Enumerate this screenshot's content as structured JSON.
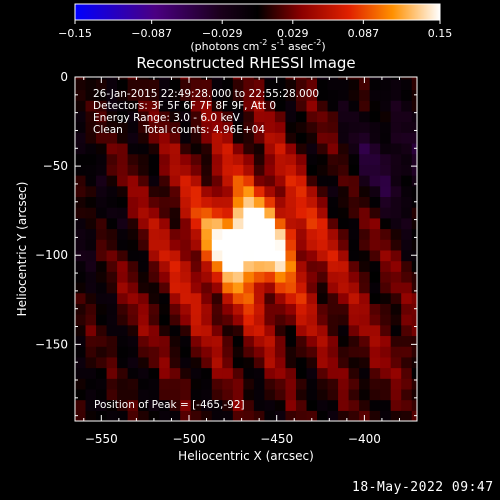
{
  "chart_data": {
    "type": "heatmap",
    "title": "Reconstructed RHESSI Image",
    "xlabel": "Heliocentric X (arcsec)",
    "ylabel": "Heliocentric Y (arcsec)",
    "xlim": [
      -565,
      -370
    ],
    "ylim": [
      -193,
      0
    ],
    "xticks": [
      -550,
      -500,
      -450,
      -400
    ],
    "yticks": [
      0,
      -50,
      -100,
      -150
    ],
    "colorbar": {
      "ticks": [
        -0.15,
        -0.087,
        -0.029,
        0.029,
        0.087,
        0.15
      ],
      "unit_text": "(photons cm",
      "unit_exp1": "-2",
      "unit_mid": " s",
      "unit_exp2": "-1",
      "unit_mid2": " asec",
      "unit_exp3": "-2",
      "unit_end": ")"
    },
    "annotations": [
      "26-Jan-2015 22:49:28.000 to 22:55:28.000",
      "Detectors: 3F 5F 6F 7F 8F 9F, Att 0",
      "Energy Range: 3.0 - 6.0 keV",
      "Clean",
      "Total counts: 4.96E+04"
    ],
    "peak_label": "Position of Peak = [-465,-92]",
    "peak": {
      "x": -465,
      "y": -92
    },
    "negative_region": {
      "x": -390,
      "y": -50
    }
  },
  "footer": "18-May-2022 09:47"
}
